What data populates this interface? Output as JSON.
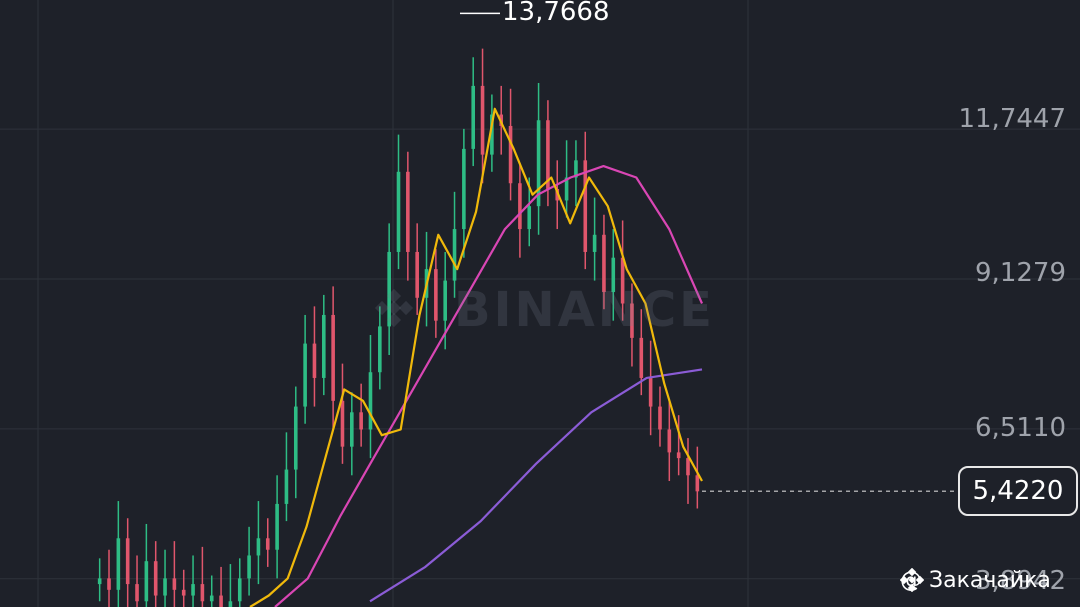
{
  "chart_data": {
    "type": "candlestick",
    "watermark": "BINANCE",
    "price_axis": {
      "ticks": [
        "11,7447",
        "9,1279",
        "6,5110",
        "3,8942"
      ],
      "tick_values": [
        11.7447,
        9.1279,
        6.511,
        3.8942
      ],
      "ylim": [
        3.4,
        14.0
      ]
    },
    "last_price": {
      "label": "5,4220",
      "value": 5.422
    },
    "high_marker": {
      "label": "13,7668",
      "value": 13.7668
    },
    "candles_close": [
      3.9,
      3.7,
      4.6,
      3.8,
      3.5,
      4.2,
      3.6,
      3.9,
      3.7,
      3.6,
      3.8,
      3.5,
      3.6,
      3.4,
      3.5,
      3.9,
      4.3,
      4.6,
      4.4,
      5.2,
      5.8,
      6.9,
      8.0,
      7.4,
      8.5,
      7.0,
      6.2,
      6.8,
      6.5,
      7.5,
      8.3,
      9.6,
      11.0,
      9.6,
      8.8,
      9.3,
      8.4,
      9.1,
      10.0,
      11.4,
      12.5,
      11.3,
      12.0,
      11.8,
      10.8,
      10.0,
      10.4,
      11.9,
      10.7,
      10.5,
      10.9,
      11.2,
      9.6,
      9.9,
      8.9,
      9.5,
      8.7,
      8.1,
      7.4,
      6.9,
      6.5,
      6.1,
      6.0,
      5.7,
      5.42
    ],
    "ma_short": [
      3.4,
      3.6,
      3.9,
      4.8,
      6.0,
      7.2,
      7.0,
      6.4,
      6.5,
      8.5,
      9.9,
      9.3,
      10.3,
      12.1,
      11.4,
      10.6,
      10.9,
      10.1,
      10.9,
      10.4,
      9.3,
      8.7,
      7.3,
      6.2,
      5.6
    ],
    "ma_medium": [
      3.4,
      3.9,
      5.0,
      6.0,
      7.0,
      8.0,
      9.0,
      10.0,
      10.6,
      10.9,
      11.1,
      10.9,
      10.0,
      8.7
    ],
    "ma_long": [
      3.5,
      4.1,
      4.9,
      5.9,
      6.8,
      7.4,
      7.55
    ],
    "colors": {
      "up": "#2ebd85",
      "down": "#e0566c",
      "ma_short": "#f0b90b",
      "ma_medium": "#d946b4",
      "ma_long": "#8b5cd6",
      "background": "#1e2129",
      "grid": "#2e323b"
    }
  },
  "footer": {
    "handle": "@ Закачайка"
  }
}
